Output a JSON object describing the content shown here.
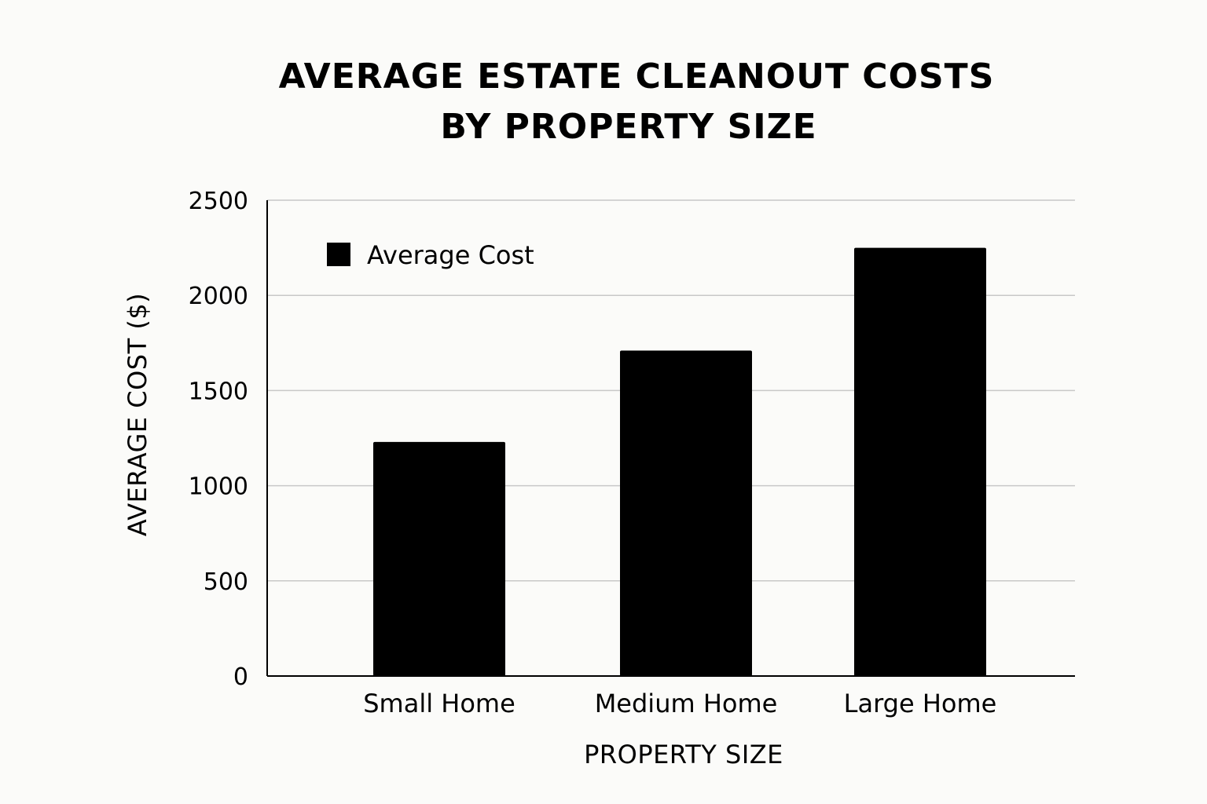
{
  "chart_data": {
    "type": "bar",
    "title_lines": [
      "AVERAGE ESTATE CLEANOUT COSTS",
      "BY PROPERTY SIZE"
    ],
    "categories": [
      "Small Home",
      "Medium Home",
      "Large Home"
    ],
    "series": [
      {
        "name": "Average Cost",
        "values": [
          1230,
          1710,
          2250
        ]
      }
    ],
    "xlabel": "PROPERTY SIZE",
    "ylabel": "AVERAGE COST ($)",
    "ylim": [
      0,
      2500
    ],
    "yticks": [
      0,
      500,
      1000,
      1500,
      2000,
      2500
    ],
    "grid": true,
    "legend_position": "top-left",
    "colors": {
      "bar": "#000000",
      "grid": "#c8c8c8",
      "axis": "#000000",
      "background": "#fbfbf9"
    }
  }
}
